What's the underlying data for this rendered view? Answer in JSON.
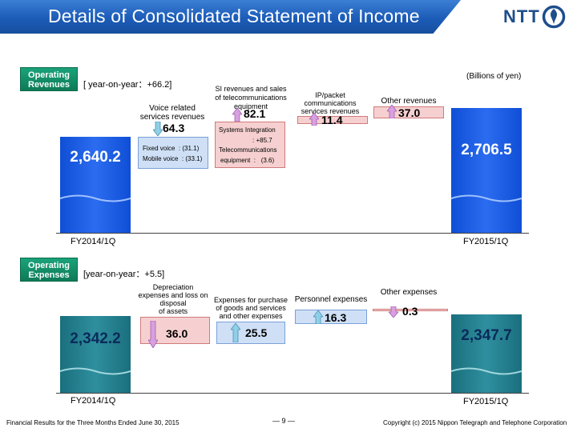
{
  "header": {
    "title": "Details of Consolidated Statement of Income",
    "logo_text": "NTT"
  },
  "units": "(Billions of yen)",
  "revenues": {
    "tag_line1": "Operating",
    "tag_line2": "Revenues",
    "yoy": "[ year-on-year：+66.2]",
    "start_label": "FY2014/1Q",
    "end_label": "FY2015/1Q",
    "start_value": "2,640.2",
    "end_value": "2,706.5",
    "voice": {
      "caption_line1": "Voice related",
      "caption_line2": "services revenues",
      "value": "64.3",
      "fixed": "Fixed voice  : (31.1)",
      "mobile": "Mobile voice  : (33.1)"
    },
    "si": {
      "caption_line1": "SI revenues and sales",
      "caption_line2": "of telecommunications",
      "caption_line3": "equipment",
      "value": "82.1",
      "line1": "Systems Integration",
      "line2": ": +85.7",
      "line3": "Telecommunications",
      "line4": "equipment  :   (3.6)"
    },
    "ip": {
      "caption_line1": "IP/packet",
      "caption_line2": "communications",
      "caption_line3": "services revenues",
      "value": "11.4"
    },
    "other": {
      "caption": "Other revenues",
      "value": "37.0"
    }
  },
  "expenses": {
    "tag_line1": "Operating",
    "tag_line2": "Expenses",
    "yoy": "[year-on-year：+5.5]",
    "start_label": "FY2014/1Q",
    "end_label": "FY2015/1Q",
    "start_value": "2,342.2",
    "end_value": "2,347.7",
    "depreciation": {
      "caption_line1": "Depreciation",
      "caption_line2": "expenses and loss on",
      "caption_line3": "disposal",
      "caption_line4": "of assets",
      "value": "36.0"
    },
    "purchase": {
      "caption_line1": "Expenses for purchase",
      "caption_line2": "of goods and services",
      "caption_line3": "and other expenses",
      "value": "25.5"
    },
    "personnel": {
      "caption": "Personnel expenses",
      "value": "16.3"
    },
    "other": {
      "caption": "Other expenses",
      "value": "0.3"
    }
  },
  "footer": {
    "left": "Financial Results for the Three Months Ended June 30, 2015",
    "page": "― 9 ―",
    "right": "Copyright (c) 2015 Nippon Telegraph and Telephone Corporation"
  },
  "colors": {
    "title_blue": "#1c5cb8",
    "tag_green": "#0d7a56",
    "bar_blue": "#1a5be0",
    "bar_teal": "#2a8896"
  }
}
